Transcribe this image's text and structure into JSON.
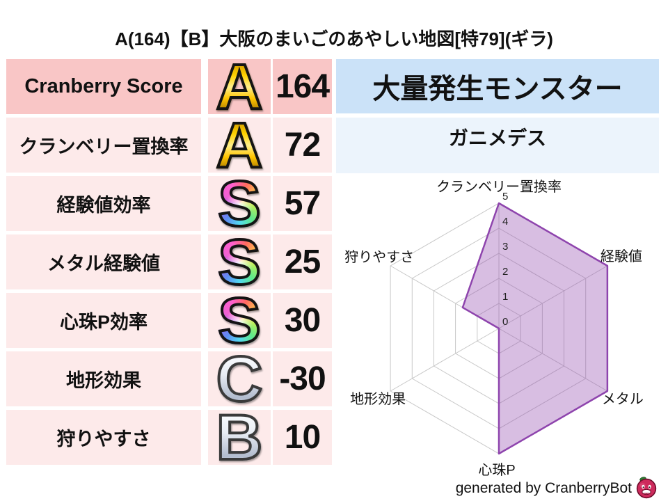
{
  "title": "A(164)【B】大阪のまいごのあやしい地図[特79](ギラ)",
  "score_table": {
    "rows": [
      {
        "label": "Cranberry Score",
        "grade": "A",
        "grade_style": "gold",
        "value": "164",
        "highlight": true
      },
      {
        "label": "クランベリー置換率",
        "grade": "A",
        "grade_style": "gold",
        "value": "72",
        "highlight": false
      },
      {
        "label": "経験値効率",
        "grade": "S",
        "grade_style": "rainbow",
        "value": "57",
        "highlight": false
      },
      {
        "label": "メタル経験値",
        "grade": "S",
        "grade_style": "rainbow",
        "value": "25",
        "highlight": false
      },
      {
        "label": "心珠P効率",
        "grade": "S",
        "grade_style": "rainbow",
        "value": "30",
        "highlight": false
      },
      {
        "label": "地形効果",
        "grade": "C",
        "grade_style": "silver",
        "value": "-30",
        "highlight": false
      },
      {
        "label": "狩りやすさ",
        "grade": "B",
        "grade_style": "silver",
        "value": "10",
        "highlight": false
      }
    ],
    "colors": {
      "highlight_bg": "#f9c6c6",
      "row_bg": "#fdeaea"
    }
  },
  "monster_panel": {
    "header": "大量発生モンスター",
    "name": "ガニメデス",
    "header_bg": "#cbe2f8",
    "name_bg": "#ecf4fc"
  },
  "chart_data": {
    "type": "radar",
    "axes": [
      "クランベリー置換率",
      "経験値",
      "メタル",
      "心珠P",
      "地形効果",
      "狩りやすさ"
    ],
    "values": [
      5,
      5,
      5,
      5,
      0,
      1.67
    ],
    "ticks": [
      0,
      1,
      2,
      3,
      4,
      5
    ],
    "rmax": 5,
    "grid_shape": "hexagon",
    "fill_color": "#8e44ad",
    "fill_opacity": 0.35,
    "stroke_color": "#8e44ad",
    "grid_color": "#c8c8c8",
    "tick_color": "#222222",
    "label_color": "#111111",
    "legend": "none"
  },
  "footer": {
    "text": "generated by CranberryBot",
    "icon": "cranberry-icon"
  }
}
